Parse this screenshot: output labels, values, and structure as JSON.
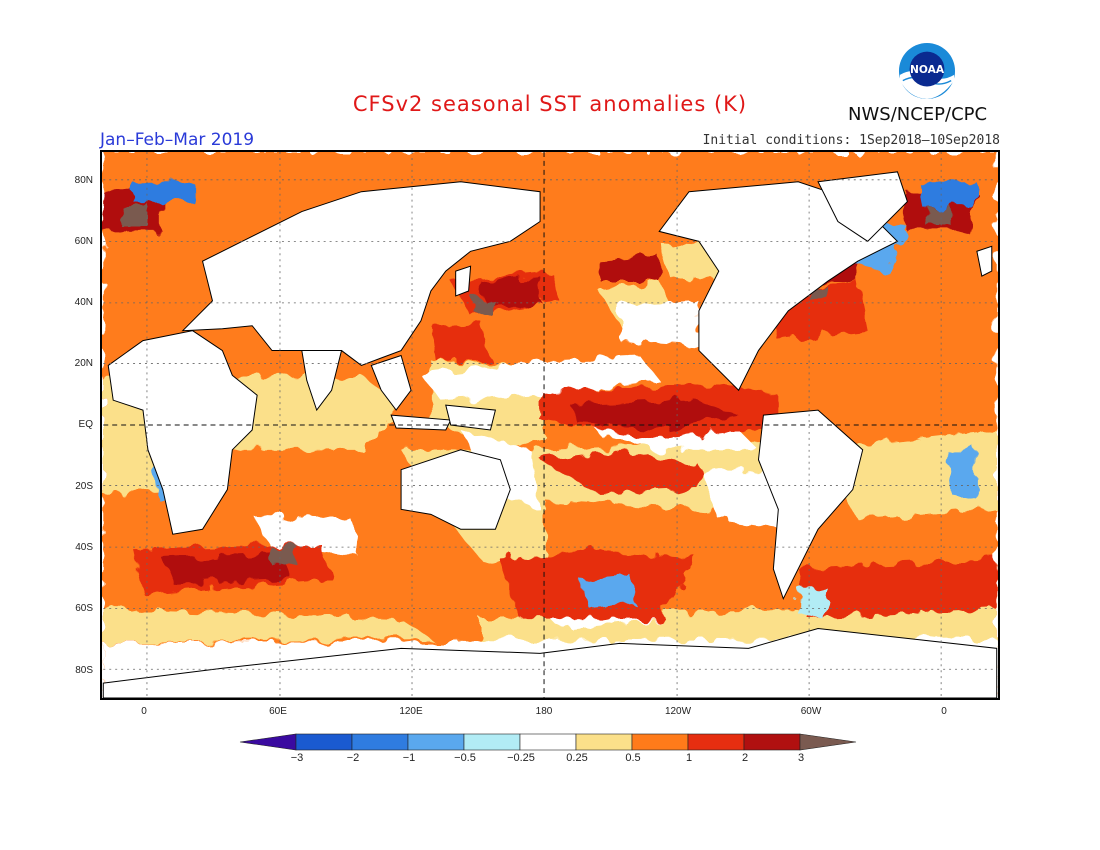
{
  "title": "CFSv2 seasonal SST anomalies (K)",
  "period": "Jan–Feb–Mar 2019",
  "initial_conditions": "Initial conditions: 1Sep2018–10Sep2018",
  "agency": "NWS/NCEP/CPC",
  "logo_text": "NOAA",
  "lat_labels": [
    "80N",
    "60N",
    "40N",
    "20N",
    "EQ",
    "20S",
    "40S",
    "60S",
    "80S"
  ],
  "lon_labels": [
    "0",
    "60E",
    "120E",
    "180",
    "120W",
    "60W",
    "0"
  ],
  "colorbar": {
    "labels": [
      "−3",
      "−2",
      "−1",
      "−0.5",
      "−0.25",
      "0.25",
      "0.5",
      "1",
      "2",
      "3"
    ],
    "colors": [
      "#3a0aa0",
      "#1a5ad0",
      "#2f7ce0",
      "#5aa8ee",
      "#b2ecf5",
      "#ffffff",
      "#fbe08a",
      "#ff7b1a",
      "#e62e10",
      "#b01010",
      "#7a5a50"
    ]
  },
  "colors": {
    "title": "#e01818",
    "period": "#2a3ad8",
    "land": "#ffffff",
    "coast": "#000000"
  }
}
